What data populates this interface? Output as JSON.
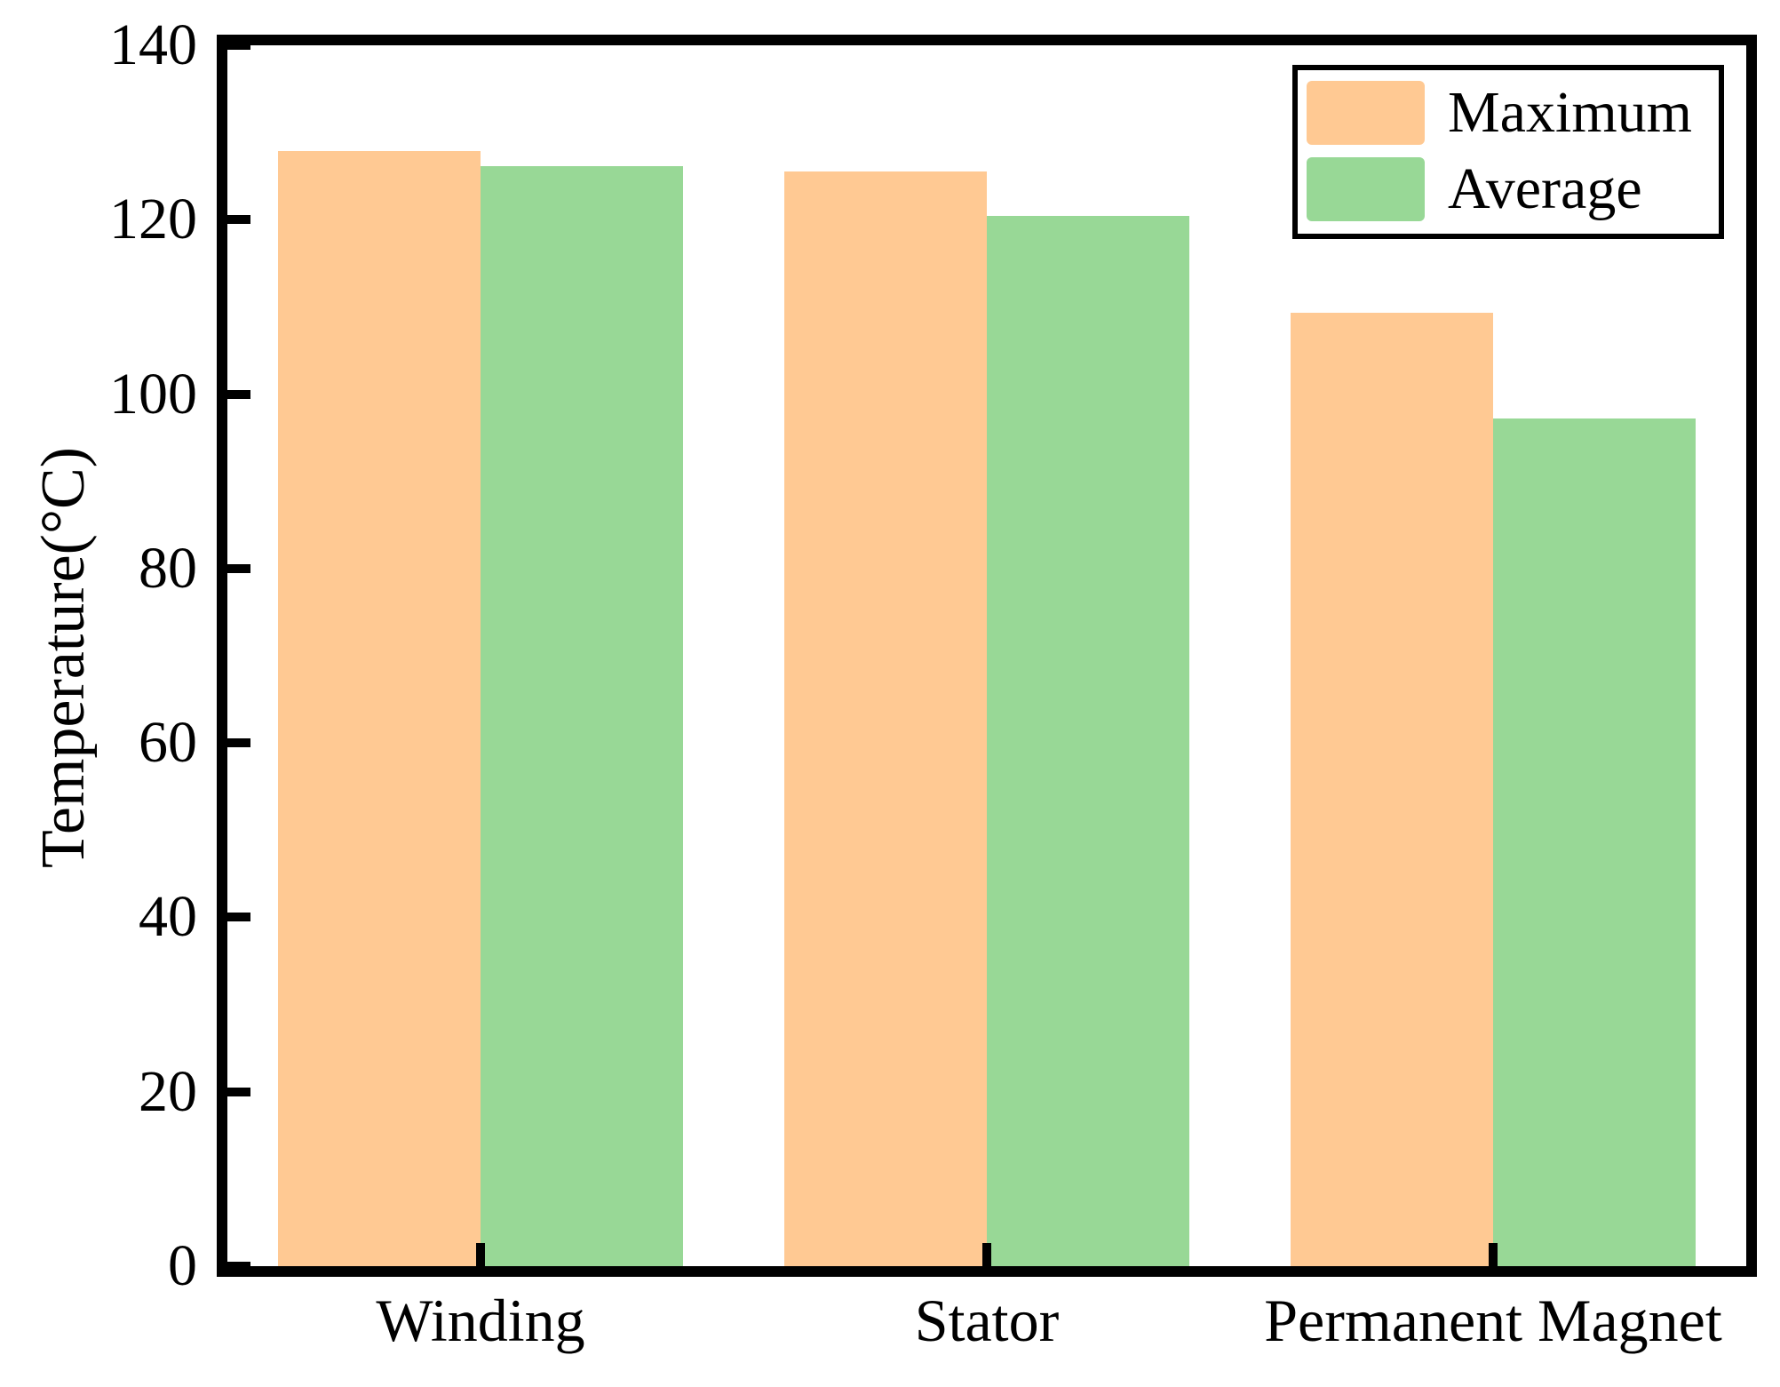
{
  "chart_data": {
    "type": "bar",
    "title": "",
    "categories": [
      "Winding",
      "Stator",
      "Permanent Magnet"
    ],
    "series": [
      {
        "name": "Maximum",
        "color": "#FFC993",
        "values": [
          127.9,
          125.5,
          109.3
        ]
      },
      {
        "name": "Average",
        "color": "#98D896",
        "values": [
          126.1,
          120.4,
          97.2
        ]
      }
    ],
    "xlabel": "",
    "ylabel": "Temperature(°C)",
    "ylim": [
      0,
      140
    ],
    "yticks": [
      0,
      20,
      40,
      60,
      80,
      100,
      120,
      140
    ],
    "x_range_units": [
      -0.5,
      2.5
    ],
    "bar_width_units": 0.4,
    "grid": false,
    "tick_direction": "in",
    "legend": {
      "position": "upper-right",
      "labels": [
        "Maximum",
        "Average"
      ]
    },
    "spine_color": "#000000",
    "text_color": "#000000"
  }
}
